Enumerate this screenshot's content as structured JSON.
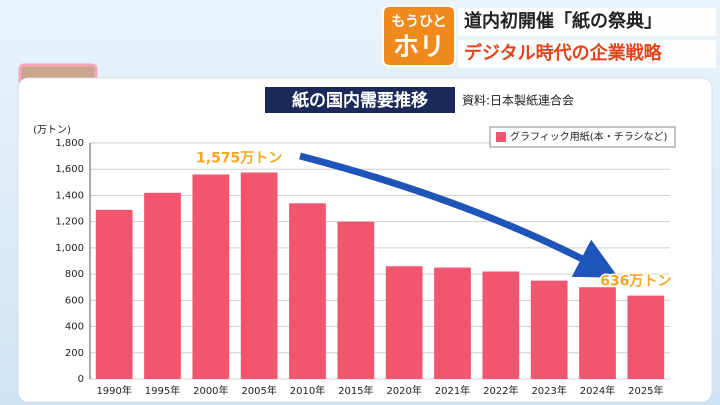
{
  "header": {
    "logo_top": "もうひと",
    "logo_bottom": "ホリ",
    "headline": "道内初開催「紙の祭典」",
    "subheadline": "デジタル時代の企業戦略"
  },
  "chart_data": {
    "type": "bar",
    "title": "紙の国内需要推移",
    "source": "資料:日本製紙連合会",
    "y_unit": "(万トン)",
    "categories": [
      "1990年",
      "1995年",
      "2000年",
      "2005年",
      "2010年",
      "2015年",
      "2020年",
      "2021年",
      "2022年",
      "2023年",
      "2024年",
      "2025年"
    ],
    "series": [
      {
        "name": "グラフィック用紙(本・チラシなど)",
        "color": "#f2566f",
        "values": [
          1290,
          1420,
          1560,
          1575,
          1340,
          1200,
          860,
          850,
          820,
          750,
          700,
          636
        ],
        "value_labels": [
          null,
          null,
          null,
          "1,575万トン",
          null,
          null,
          null,
          null,
          null,
          null,
          null,
          "636万トン"
        ]
      }
    ],
    "ylim": [
      0,
      1800
    ],
    "yticks": [
      0,
      200,
      400,
      600,
      800,
      {
        "value": 1000,
        "label": "1,000"
      },
      {
        "value": 1200,
        "label": "1,200"
      },
      {
        "value": 1400,
        "label": "1,400"
      },
      {
        "value": 1600,
        "label": "1,600"
      },
      {
        "value": 1800,
        "label": "1,800"
      }
    ],
    "grid": true
  }
}
